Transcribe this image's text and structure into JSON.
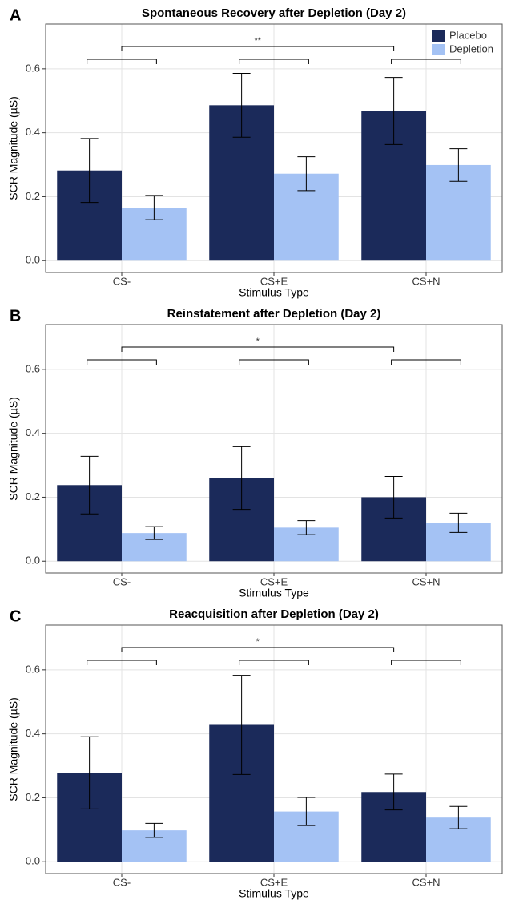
{
  "chart_data": [
    {
      "type": "bar",
      "panel_label": "A",
      "title": "Spontaneous Recovery after Depletion (Day 2)",
      "x_label": "Stimulus Type",
      "y_label": "SCR Magnitude (µS)",
      "categories": [
        "CS-",
        "CS+E",
        "CS+N"
      ],
      "series": [
        {
          "name": "Placebo",
          "color": "#1b2a5a",
          "values": [
            0.282,
            0.486,
            0.468
          ],
          "errors": [
            0.1,
            0.1,
            0.105
          ]
        },
        {
          "name": "Depletion",
          "color": "#a4c2f4",
          "values": [
            0.166,
            0.272,
            0.299
          ],
          "errors": [
            0.038,
            0.053,
            0.051
          ]
        }
      ],
      "ylim": [
        -0.037,
        0.74
      ],
      "yticks": [
        {
          "value": 0,
          "label": "0.0"
        },
        0.2,
        0.4,
        0.6
      ],
      "grid": true,
      "legend": "top-right",
      "significance": "**"
    },
    {
      "type": "bar",
      "panel_label": "B",
      "title": "Reinstatement after Depletion (Day 2)",
      "x_label": "Stimulus Type",
      "y_label": "SCR Magnitude (µS)",
      "categories": [
        "CS-",
        "CS+E",
        "CS+N"
      ],
      "series": [
        {
          "color": "#1b2a5a",
          "values": [
            0.238,
            0.26,
            0.2
          ],
          "errors": [
            0.09,
            0.098,
            0.065
          ]
        },
        {
          "color": "#a4c2f4",
          "values": [
            0.088,
            0.105,
            0.12
          ],
          "errors": [
            0.02,
            0.022,
            0.03
          ]
        }
      ],
      "ylim": [
        -0.037,
        0.74
      ],
      "yticks": [
        {
          "value": 0,
          "label": "0.0"
        },
        0.2,
        0.4,
        0.6
      ],
      "grid": true,
      "significance": "*"
    },
    {
      "type": "bar",
      "panel_label": "C",
      "title": "Reacquisition after Depletion (Day 2)",
      "x_label": "Stimulus Type",
      "y_label": "SCR Magnitude (µS)",
      "categories": [
        "CS-",
        "CS+E",
        "CS+N"
      ],
      "series": [
        {
          "color": "#1b2a5a",
          "values": [
            0.278,
            0.428,
            0.218
          ],
          "errors": [
            0.113,
            0.155,
            0.056
          ]
        },
        {
          "color": "#a4c2f4",
          "values": [
            0.098,
            0.157,
            0.138
          ],
          "errors": [
            0.022,
            0.044,
            0.035
          ]
        }
      ],
      "ylim": [
        -0.037,
        0.74
      ],
      "yticks": [
        {
          "value": 0,
          "label": "0.0"
        },
        0.2,
        0.4,
        0.6
      ],
      "grid": true,
      "significance": "*"
    }
  ]
}
